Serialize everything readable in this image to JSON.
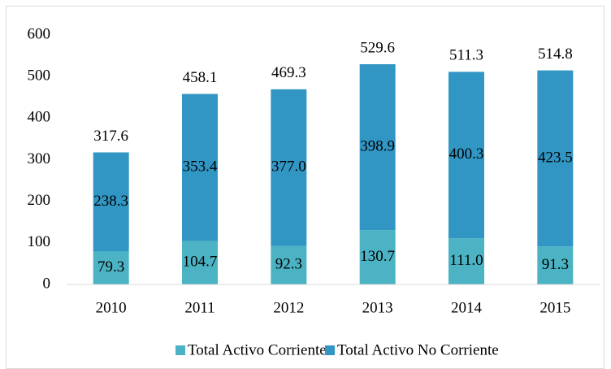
{
  "chart_data": {
    "type": "stacked-bar",
    "categories": [
      "2010",
      "2011",
      "2012",
      "2013",
      "2014",
      "2015"
    ],
    "series": [
      {
        "name": "Total Activo Corriente",
        "color": "#4bb3c3",
        "values": [
          79.3,
          104.7,
          92.3,
          130.7,
          111.0,
          91.3
        ],
        "value_labels": [
          "79.3",
          "104.7",
          "92.3",
          "130.7",
          "111.0",
          "91.3"
        ]
      },
      {
        "name": "Total Activo No Corriente",
        "color": "#3196c4",
        "values": [
          238.3,
          353.4,
          377.0,
          398.9,
          400.3,
          423.5
        ],
        "value_labels": [
          "238.3",
          "353.4",
          "377.0",
          "398.9",
          "400.3",
          "423.5"
        ]
      }
    ],
    "totals": [
      317.6,
      458.1,
      469.3,
      529.6,
      511.3,
      514.8
    ],
    "ylim": [
      0,
      600
    ],
    "yticks": [
      0,
      100,
      200,
      300,
      400,
      500,
      600
    ],
    "grid": false,
    "legend": "bottom"
  }
}
